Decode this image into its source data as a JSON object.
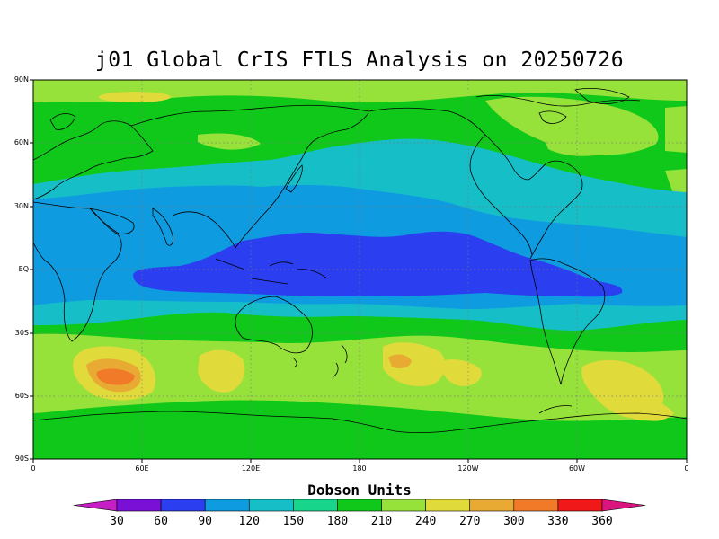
{
  "title": "j01 Global CrIS FTLS Analysis on 20250726",
  "y_axis_labels": [
    "90N",
    "60N",
    "30N",
    "EQ",
    "30S",
    "60S",
    "90S"
  ],
  "x_axis_labels": [
    "0",
    "60E",
    "120E",
    "180",
    "120W",
    "60W",
    "0"
  ],
  "colorbar": {
    "title": "Dobson Units",
    "tick_labels": [
      "30",
      "60",
      "90",
      "120",
      "150",
      "180",
      "210",
      "240",
      "270",
      "300",
      "330",
      "360"
    ],
    "colors": [
      "#c41ec4",
      "#7a10d6",
      "#2b3ff0",
      "#0f9be0",
      "#16bfc8",
      "#18d58c",
      "#10c81a",
      "#96e23a",
      "#e0da3a",
      "#e8aa32",
      "#f07a28",
      "#f01818",
      "#dc1480"
    ]
  },
  "map": {
    "region": "global",
    "projection": "cylindrical equidistant",
    "quantity": "total column ozone",
    "grid_lines": true
  }
}
